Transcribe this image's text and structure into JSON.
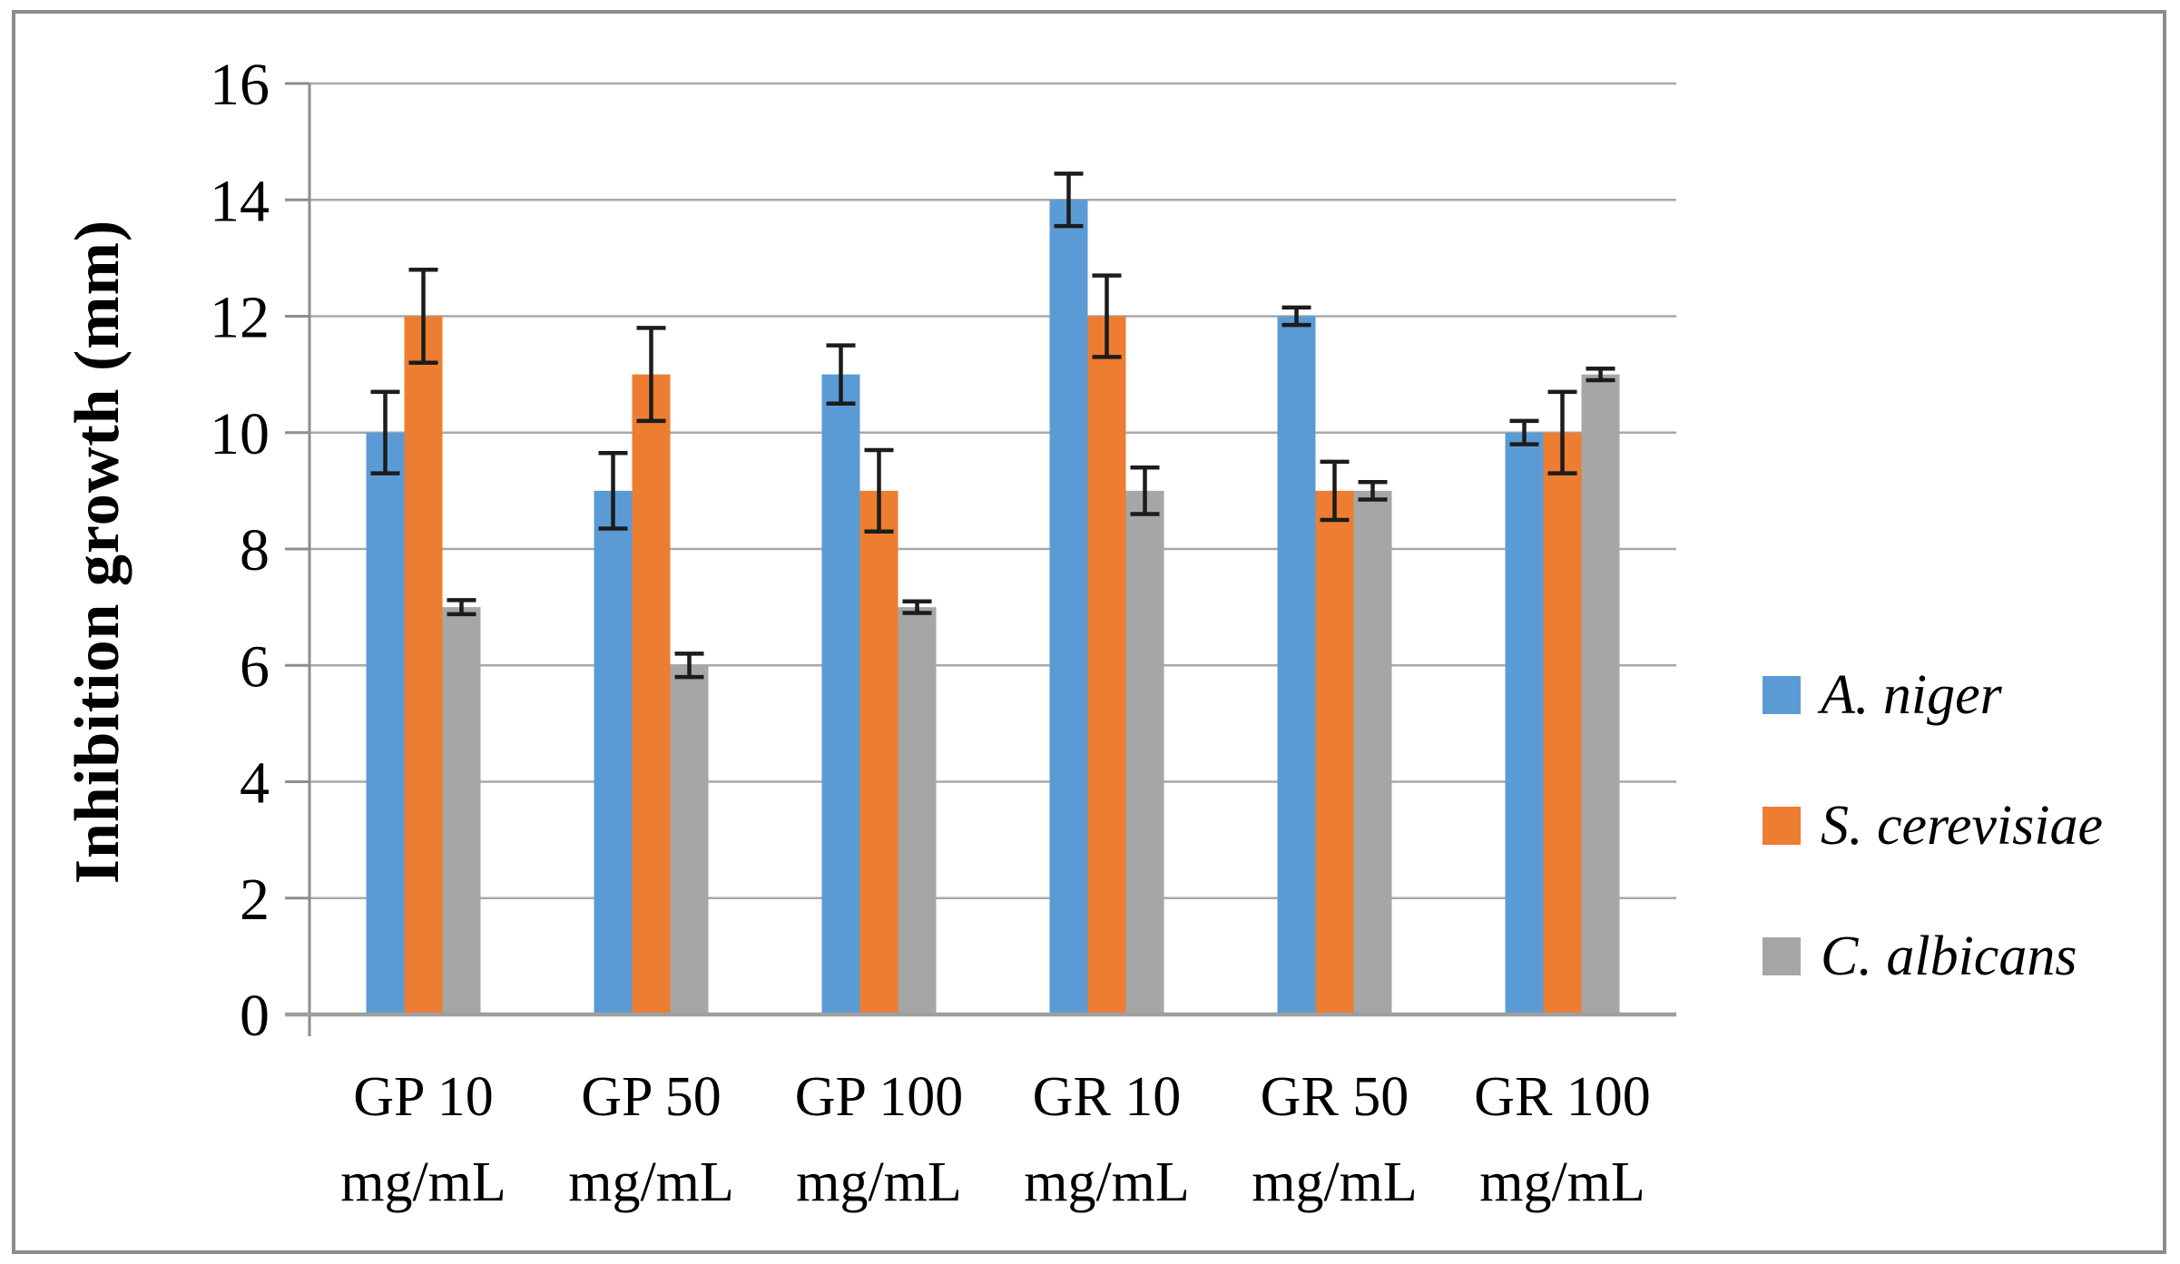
{
  "figure": {
    "kind": "grouped-bar-chart-with-error-bars",
    "title": "",
    "y_axis_title": "Inhibition growth (mm)"
  },
  "chart_data": {
    "type": "bar",
    "title": "",
    "xlabel": "",
    "ylabel": "Inhibition growth (mm)",
    "ylim": [
      0,
      16
    ],
    "y_ticks": [
      0,
      2,
      4,
      6,
      8,
      10,
      12,
      14,
      16
    ],
    "grid": true,
    "error_bars": true,
    "legend_position": "right",
    "categories": [
      "GP 10",
      "GP 50",
      "GP 100",
      "GR 10",
      "GR 50",
      "GR 100"
    ],
    "category_unit": "mg/mL",
    "series": [
      {
        "name": "A. niger",
        "color": "#5B9BD5",
        "values": [
          10,
          9,
          11,
          14,
          12,
          10
        ],
        "errors": [
          0.7,
          0.65,
          0.5,
          0.45,
          0.15,
          0.2
        ]
      },
      {
        "name": "S. cerevisiae",
        "color": "#ED7D31",
        "values": [
          12,
          11,
          9,
          12,
          9,
          10
        ],
        "errors": [
          0.8,
          0.8,
          0.7,
          0.7,
          0.5,
          0.7
        ]
      },
      {
        "name": "C. albicans",
        "color": "#A6A6A6",
        "values": [
          7,
          6,
          7,
          9,
          9,
          11
        ],
        "errors": [
          0.12,
          0.2,
          0.1,
          0.4,
          0.15,
          0.1
        ]
      }
    ]
  },
  "colors": {
    "gridline": "#A8A8A8",
    "axis": "#8D8D8D",
    "bottom_axis": "#9E9E9E",
    "error_bar": "#1C1C1C",
    "frame": "#8C8C8C",
    "text": "#000000"
  }
}
